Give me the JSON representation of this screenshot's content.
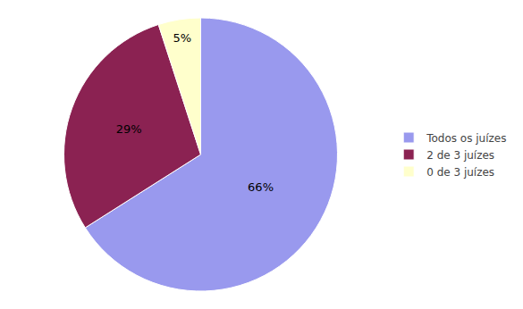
{
  "chart_data": {
    "type": "pie",
    "categories": [
      "Todos os juízes",
      "2 de 3 juízes",
      "0 de 3 juízes"
    ],
    "values": [
      66,
      29,
      5
    ],
    "value_labels": [
      "66%",
      "29%",
      "5%"
    ],
    "data_labels": true,
    "colors": [
      "#9999ee",
      "#8B2252",
      "#FFFFCC"
    ],
    "legend": "right"
  }
}
